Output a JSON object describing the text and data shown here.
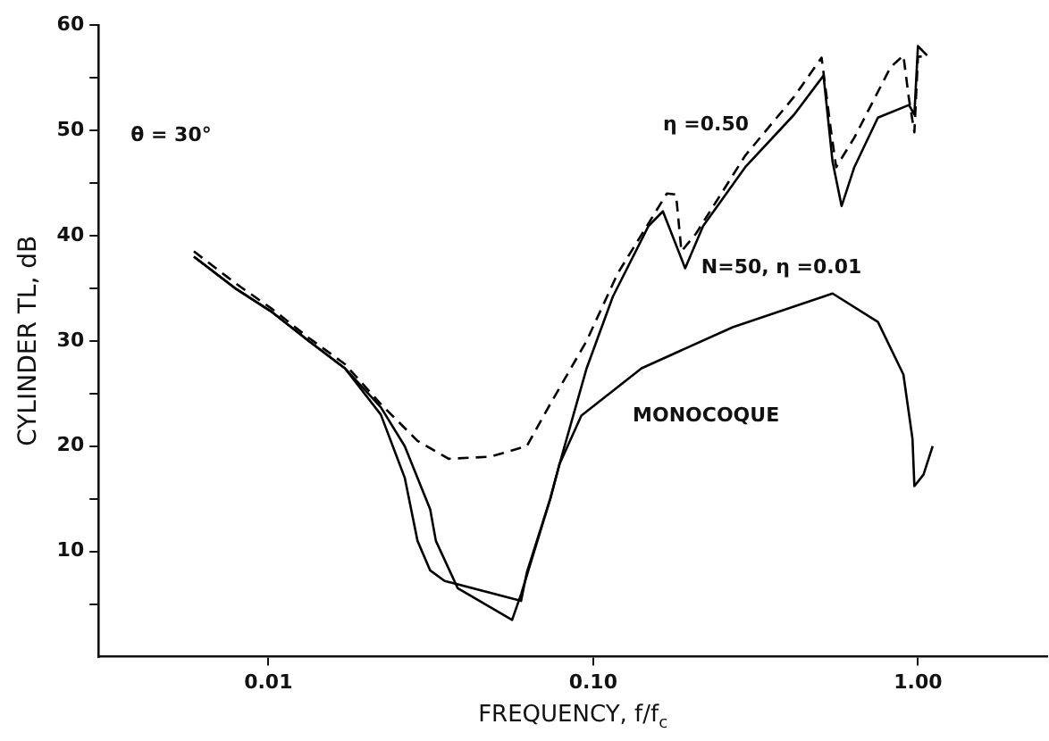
{
  "chart_data": {
    "type": "line",
    "xlabel": "FREQUENCY, f/f$_{c}$",
    "ylabel": "CYLINDER TL, dB",
    "annotations": [
      "θ = 30°"
    ],
    "log": "x",
    "grid": false,
    "legend": false,
    "marker": "none",
    "xlim": [
      0.003,
      2.5
    ],
    "xticks": [
      {
        "value": 0.01,
        "label": "0.01"
      },
      {
        "value": 0.1,
        "label": "0.10"
      },
      {
        "value": 1,
        "label": "1.00"
      }
    ],
    "ylim": [
      0,
      60
    ],
    "yticks": [
      {
        "value": 5,
        "label": null
      },
      10,
      {
        "value": 15,
        "label": null
      },
      20,
      {
        "value": 25,
        "label": null
      },
      30,
      {
        "value": 35,
        "label": null
      },
      40,
      {
        "value": 45,
        "label": null
      },
      50,
      {
        "value": 55,
        "label": null
      },
      60
    ],
    "series": [
      {
        "name": "MONOCOQUE",
        "color": "#000000",
        "line_style": "solid",
        "x": [
          0.0059,
          0.0079,
          0.0103,
          0.0133,
          0.0172,
          0.0222,
          0.0263,
          0.0288,
          0.0315,
          0.0349,
          0.06,
          0.0625,
          0.0738,
          0.0788,
          0.092,
          0.141,
          0.269,
          0.546,
          0.753,
          0.902,
          0.962,
          0.975,
          1.04,
          1.11
        ],
        "values": [
          38,
          35,
          32.7,
          30,
          27.4,
          23,
          17,
          11,
          8.2,
          7.2,
          5.3,
          8,
          15,
          18.3,
          22.9,
          27.4,
          31.3,
          34.5,
          31.8,
          26.8,
          20.7,
          16.2,
          17.3,
          20
        ]
      },
      {
        "name": "N=50, η =0.01",
        "color": "#000000",
        "line_style": "solid",
        "x": [
          0.0059,
          0.0079,
          0.0103,
          0.0133,
          0.0172,
          0.0222,
          0.0263,
          0.0315,
          0.0328,
          0.0383,
          0.0563,
          0.0601,
          0.0738,
          0.0788,
          0.0955,
          0.115,
          0.148,
          0.164,
          0.192,
          0.218,
          0.294,
          0.416,
          0.512,
          0.546,
          0.582,
          0.637,
          0.753,
          0.938,
          0.975,
          1.0,
          1.067
        ],
        "values": [
          38,
          35,
          32.7,
          30,
          27.4,
          23.7,
          20,
          14,
          11,
          6.5,
          3.5,
          6,
          15,
          18.3,
          27.4,
          34.2,
          40.9,
          42.3,
          36.9,
          40.9,
          46.5,
          51.5,
          55.2,
          47,
          42.8,
          46.5,
          51.2,
          52.4,
          51.5,
          58,
          57.1
        ]
      },
      {
        "name": "η =0.50",
        "color": "#000000",
        "line_style": "dashed",
        "x": [
          0.0059,
          0.0079,
          0.0103,
          0.0133,
          0.0172,
          0.0222,
          0.0288,
          0.0359,
          0.0482,
          0.0625,
          0.0738,
          0.0955,
          0.119,
          0.1687,
          0.18,
          0.187,
          0.2075,
          0.294,
          0.416,
          0.505,
          0.538,
          0.56,
          0.637,
          0.824,
          0.902,
          0.938,
          0.975,
          1.0,
          1.067
        ],
        "values": [
          38.5,
          35.5,
          33,
          30.3,
          27.8,
          24,
          20.5,
          18.8,
          19,
          20,
          24,
          30,
          36.4,
          44,
          43.9,
          38.5,
          40.2,
          47.6,
          53.2,
          56.9,
          50.3,
          46.5,
          49.3,
          56,
          57.1,
          53,
          49.8,
          57,
          57
        ]
      }
    ]
  }
}
